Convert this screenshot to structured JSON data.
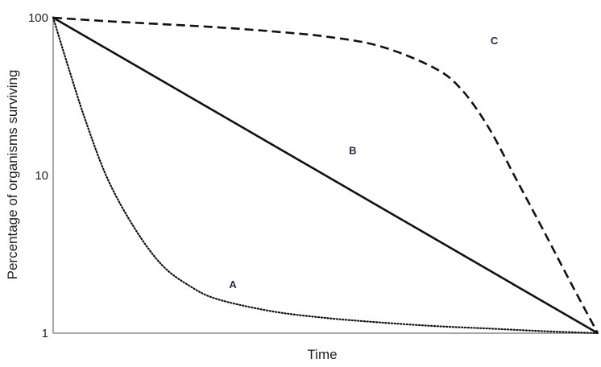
{
  "chart_data": {
    "type": "line",
    "title": "",
    "xlabel": "Time",
    "ylabel": "Percentage of organisms surviving",
    "y_scale": "log",
    "ylim": [
      1,
      100
    ],
    "xlim": [
      0,
      1
    ],
    "y_ticks": [
      {
        "value": 1,
        "label": "1"
      },
      {
        "value": 10,
        "label": "10"
      },
      {
        "value": 100,
        "label": "100"
      }
    ],
    "grid": false,
    "series": [
      {
        "name": "A",
        "style": "dotted",
        "x": [
          0,
          0.03,
          0.06,
          0.1,
          0.15,
          0.2,
          0.25,
          0.3,
          0.4,
          0.5,
          0.6,
          0.7,
          0.8,
          0.9,
          1.0
        ],
        "y": [
          100,
          46,
          22,
          9.5,
          4.6,
          2.7,
          2.0,
          1.65,
          1.38,
          1.25,
          1.17,
          1.11,
          1.07,
          1.03,
          1.0
        ]
      },
      {
        "name": "B",
        "style": "solid",
        "x": [
          0,
          1
        ],
        "y": [
          100,
          1
        ]
      },
      {
        "name": "C",
        "style": "dashed",
        "x": [
          0,
          0.1,
          0.2,
          0.3,
          0.4,
          0.5,
          0.6,
          0.7,
          0.75,
          0.8,
          0.85,
          0.9,
          0.95,
          1.0
        ],
        "y": [
          100,
          95,
          91,
          87,
          82,
          76,
          66,
          48,
          35,
          20,
          9.5,
          4.5,
          2.1,
          1.0
        ]
      }
    ],
    "annotations": [
      {
        "text": "A",
        "x": 0.33,
        "y": 2.05
      },
      {
        "text": "B",
        "x": 0.55,
        "y": 14.5
      },
      {
        "text": "C",
        "x": 0.81,
        "y": 72
      }
    ],
    "colors": {
      "axis": "#888888",
      "line": "#111111",
      "label": "#1f2a4a"
    }
  }
}
